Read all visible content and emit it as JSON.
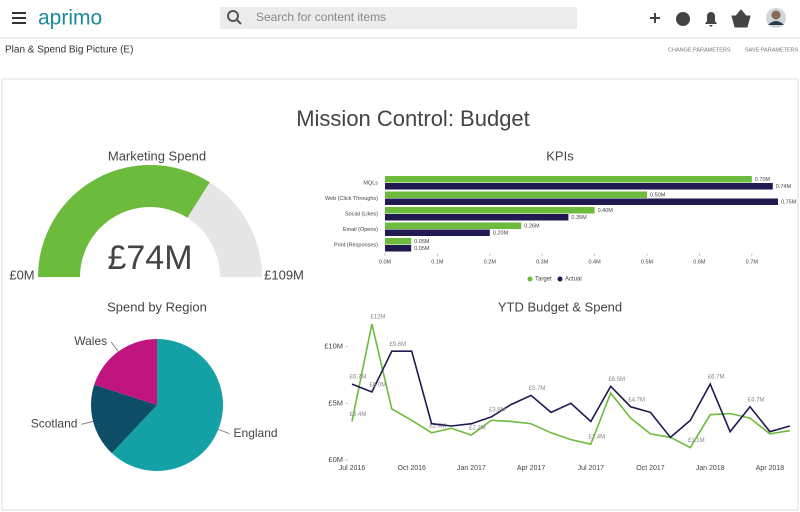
{
  "header": {
    "logo": "aprimo",
    "search_placeholder": "Search for content items"
  },
  "toolbar": {
    "title": "Plan & Spend Big Picture (E)",
    "actions": [
      "CHANGE PARAMETERS",
      "SAVE PARAMETERS"
    ]
  },
  "dashboard_title": "Mission Control: Budget",
  "chart_data": [
    {
      "type": "gauge",
      "title": "Marketing Spend",
      "value": 74,
      "value_label": "£74M",
      "min": 0,
      "min_label": "£0M",
      "max": 109,
      "max_label": "£109M",
      "color": "#6cbb3c",
      "track_color": "#e6e6e6"
    },
    {
      "type": "hbar",
      "title": "KPIs",
      "categories": [
        "MQLs",
        "Web (Click Throughs)",
        "Social (Likes)",
        "Email (Opens)",
        "Print (Responses)"
      ],
      "series": [
        {
          "name": "Target",
          "color": "#6cbb3c",
          "values": [
            0.7,
            0.5,
            0.4,
            0.26,
            0.05
          ],
          "value_labels": [
            "0.70M",
            "0.50M",
            "0.40M",
            "0.26M",
            "0.05M"
          ]
        },
        {
          "name": "Actual",
          "color": "#1f1a4f",
          "values": [
            0.74,
            0.75,
            0.35,
            0.2,
            0.05
          ],
          "value_labels": [
            "0.74M",
            "0.75M",
            "0.35M",
            "0.20M",
            "0.05M"
          ]
        }
      ],
      "xlim": [
        0,
        0.75
      ],
      "xticks": [
        {
          "value": 0,
          "label": "0.0M"
        },
        {
          "value": 0.1,
          "label": "0.1M"
        },
        {
          "value": 0.2,
          "label": "0.2M"
        },
        {
          "value": 0.3,
          "label": "0.3M"
        },
        {
          "value": 0.4,
          "label": "0.4M"
        },
        {
          "value": 0.5,
          "label": "0.5M"
        },
        {
          "value": 0.6,
          "label": "0.6M"
        },
        {
          "value": 0.7,
          "label": "0.7M"
        }
      ],
      "legend": "bottom"
    },
    {
      "type": "pie",
      "title": "Spend by Region",
      "categories": [
        "England",
        "Scotland",
        "Wales"
      ],
      "values": [
        62,
        18,
        20
      ],
      "colors": [
        "#13a1a6",
        "#0e4d66",
        "#c0157f"
      ]
    },
    {
      "type": "line",
      "title": "YTD Budget & Spend",
      "categories": [
        "Jul 2016",
        null,
        null,
        "Oct 2016",
        null,
        null,
        "Jan 2017",
        null,
        null,
        "Apr 2017",
        null,
        null,
        "Jul 2017",
        null,
        null,
        "Oct 2017",
        null,
        null,
        "Jan 2018",
        null,
        null,
        "Apr 2018",
        null
      ],
      "series": [
        {
          "color": "#6cbb3c",
          "values": [
            3.4,
            12,
            4.5,
            3.5,
            2.4,
            2.8,
            2.2,
            3.5,
            3.4,
            3.2,
            2.4,
            1.8,
            1.4,
            5.9,
            3.7,
            2.3,
            2.0,
            1.1,
            4.0,
            4.1,
            3.7,
            2.3,
            2.6
          ],
          "value_labels": [
            "£3.4M",
            "£12M",
            null,
            null,
            "£2.4M",
            null,
            "£2.2M",
            null,
            null,
            null,
            null,
            null,
            "£1.4M",
            null,
            null,
            null,
            null,
            "£1.1M",
            null,
            null,
            null,
            null,
            null
          ]
        },
        {
          "color": "#1f1a4f",
          "values": [
            6.7,
            6.0,
            9.6,
            9.6,
            3.2,
            3.0,
            3.2,
            3.8,
            4.9,
            5.7,
            4.2,
            5.0,
            3.4,
            6.5,
            4.7,
            4.2,
            2.0,
            3.5,
            6.7,
            2.5,
            4.7,
            2.5,
            3.0
          ],
          "value_labels": [
            "£6.7M",
            "£6.0M",
            "£9.6M",
            null,
            null,
            null,
            null,
            "£3.8M",
            null,
            "£5.7M",
            null,
            null,
            null,
            "£6.5M",
            "£4.7M",
            null,
            null,
            null,
            "£6.7M",
            null,
            "£4.7M",
            null,
            null
          ]
        }
      ],
      "ylim": [
        0,
        12
      ],
      "yticks": [
        {
          "value": 0,
          "label": "£0M"
        },
        {
          "value": 5,
          "label": "£5M"
        },
        {
          "value": 10,
          "label": "£10M"
        }
      ]
    }
  ]
}
